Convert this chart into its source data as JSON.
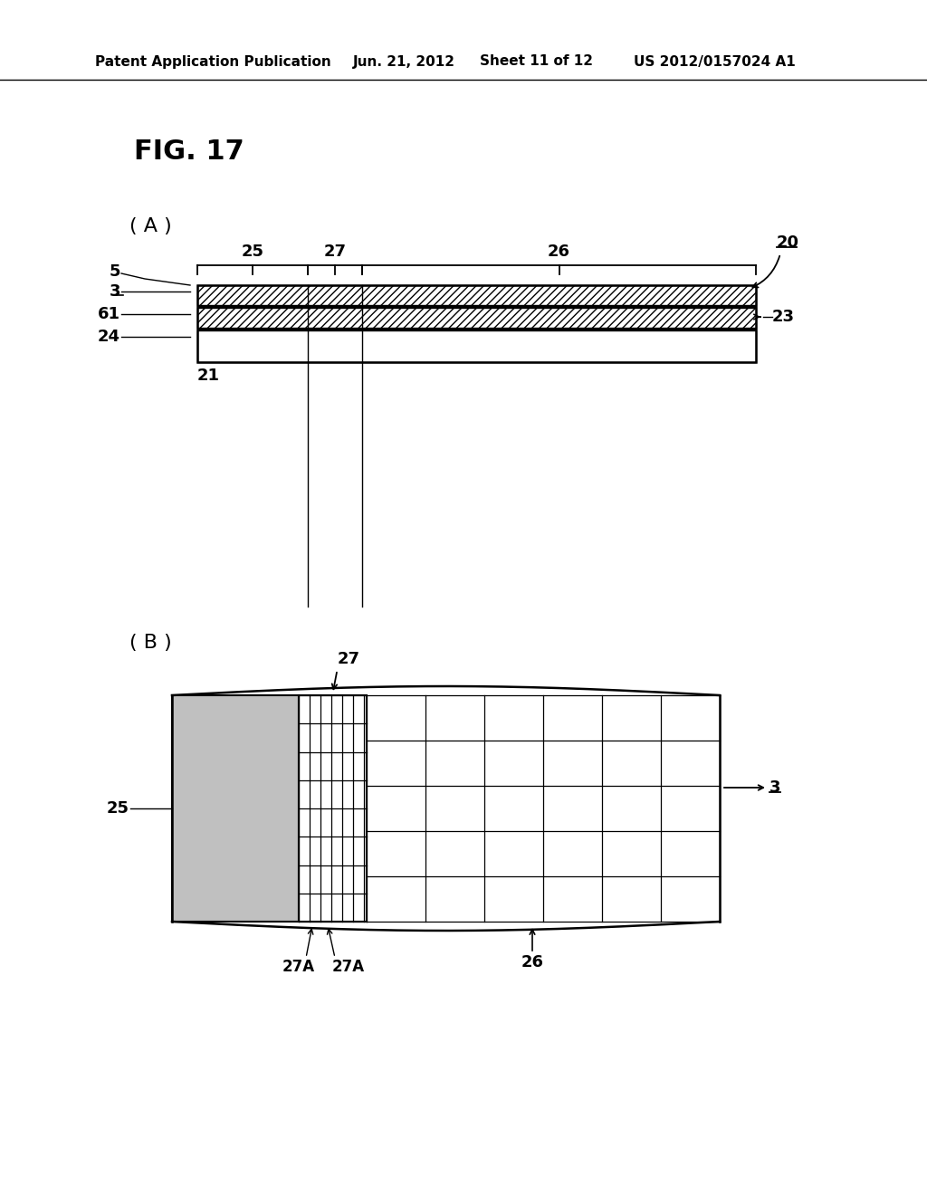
{
  "bg_color": "#ffffff",
  "header_text": "Patent Application Publication",
  "header_date": "Jun. 21, 2012",
  "header_sheet": "Sheet 11 of 12",
  "header_patent": "US 2012/0157024 A1",
  "fig_label": "FIG. 17",
  "sub_A": "( A )",
  "sub_B": "( B )",
  "label_20": "20",
  "label_25": "25",
  "label_27": "27",
  "label_26": "26",
  "label_5": "5",
  "label_3": "3",
  "label_61": "61",
  "label_24": "24",
  "label_21": "21",
  "label_23": "23",
  "label_27A_1": "27A",
  "label_27A_2": "27A",
  "label_26B": "26",
  "label_3B": "3",
  "label_25B": "25",
  "label_27B": "27",
  "hatch_color": "#000000",
  "line_color": "#000000",
  "gray_fill": "#c0c0c0",
  "white_fill": "#ffffff",
  "grid_color": "#000000"
}
